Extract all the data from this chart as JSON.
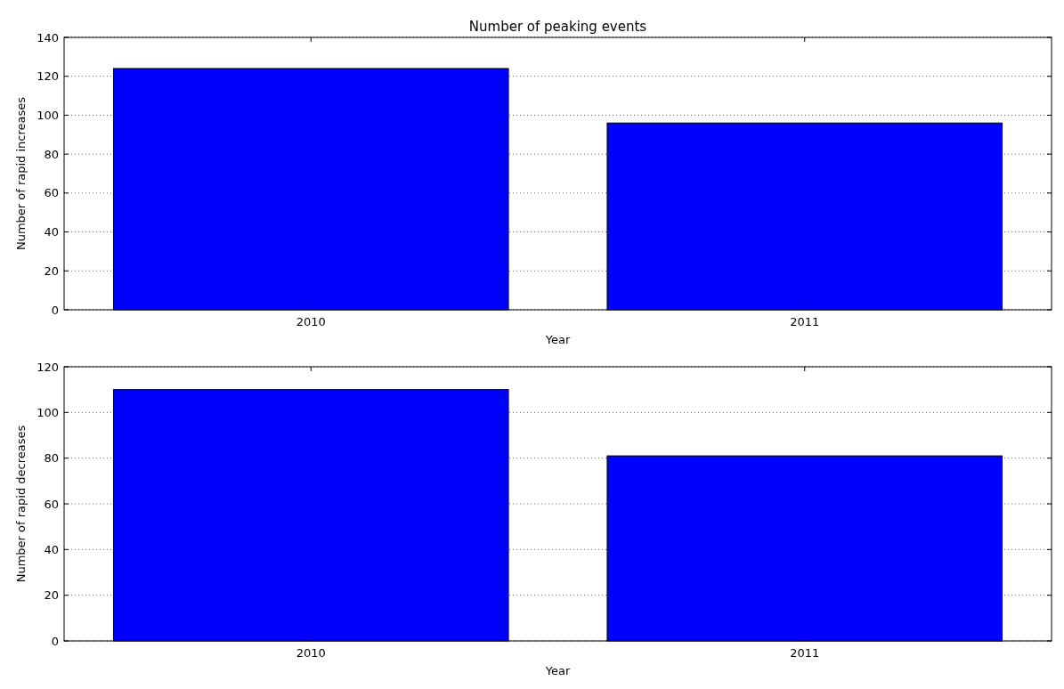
{
  "chart_data": [
    {
      "type": "bar",
      "title": "Number of peaking events",
      "xlabel": "Year",
      "ylabel": "Number of rapid increases",
      "categories": [
        "2010",
        "2011"
      ],
      "values": [
        124,
        96
      ],
      "color": "#0000ff",
      "ylim": [
        0,
        140
      ],
      "yticks": [
        0,
        20,
        40,
        60,
        80,
        100,
        120,
        140
      ],
      "grid": "y"
    },
    {
      "type": "bar",
      "xlabel": "Year",
      "ylabel": "Number of rapid decreases",
      "categories": [
        "2010",
        "2011"
      ],
      "values": [
        110,
        81
      ],
      "color": "#0000ff",
      "ylim": [
        0,
        120
      ],
      "yticks": [
        0,
        20,
        40,
        60,
        80,
        100,
        120
      ],
      "grid": "y"
    }
  ]
}
